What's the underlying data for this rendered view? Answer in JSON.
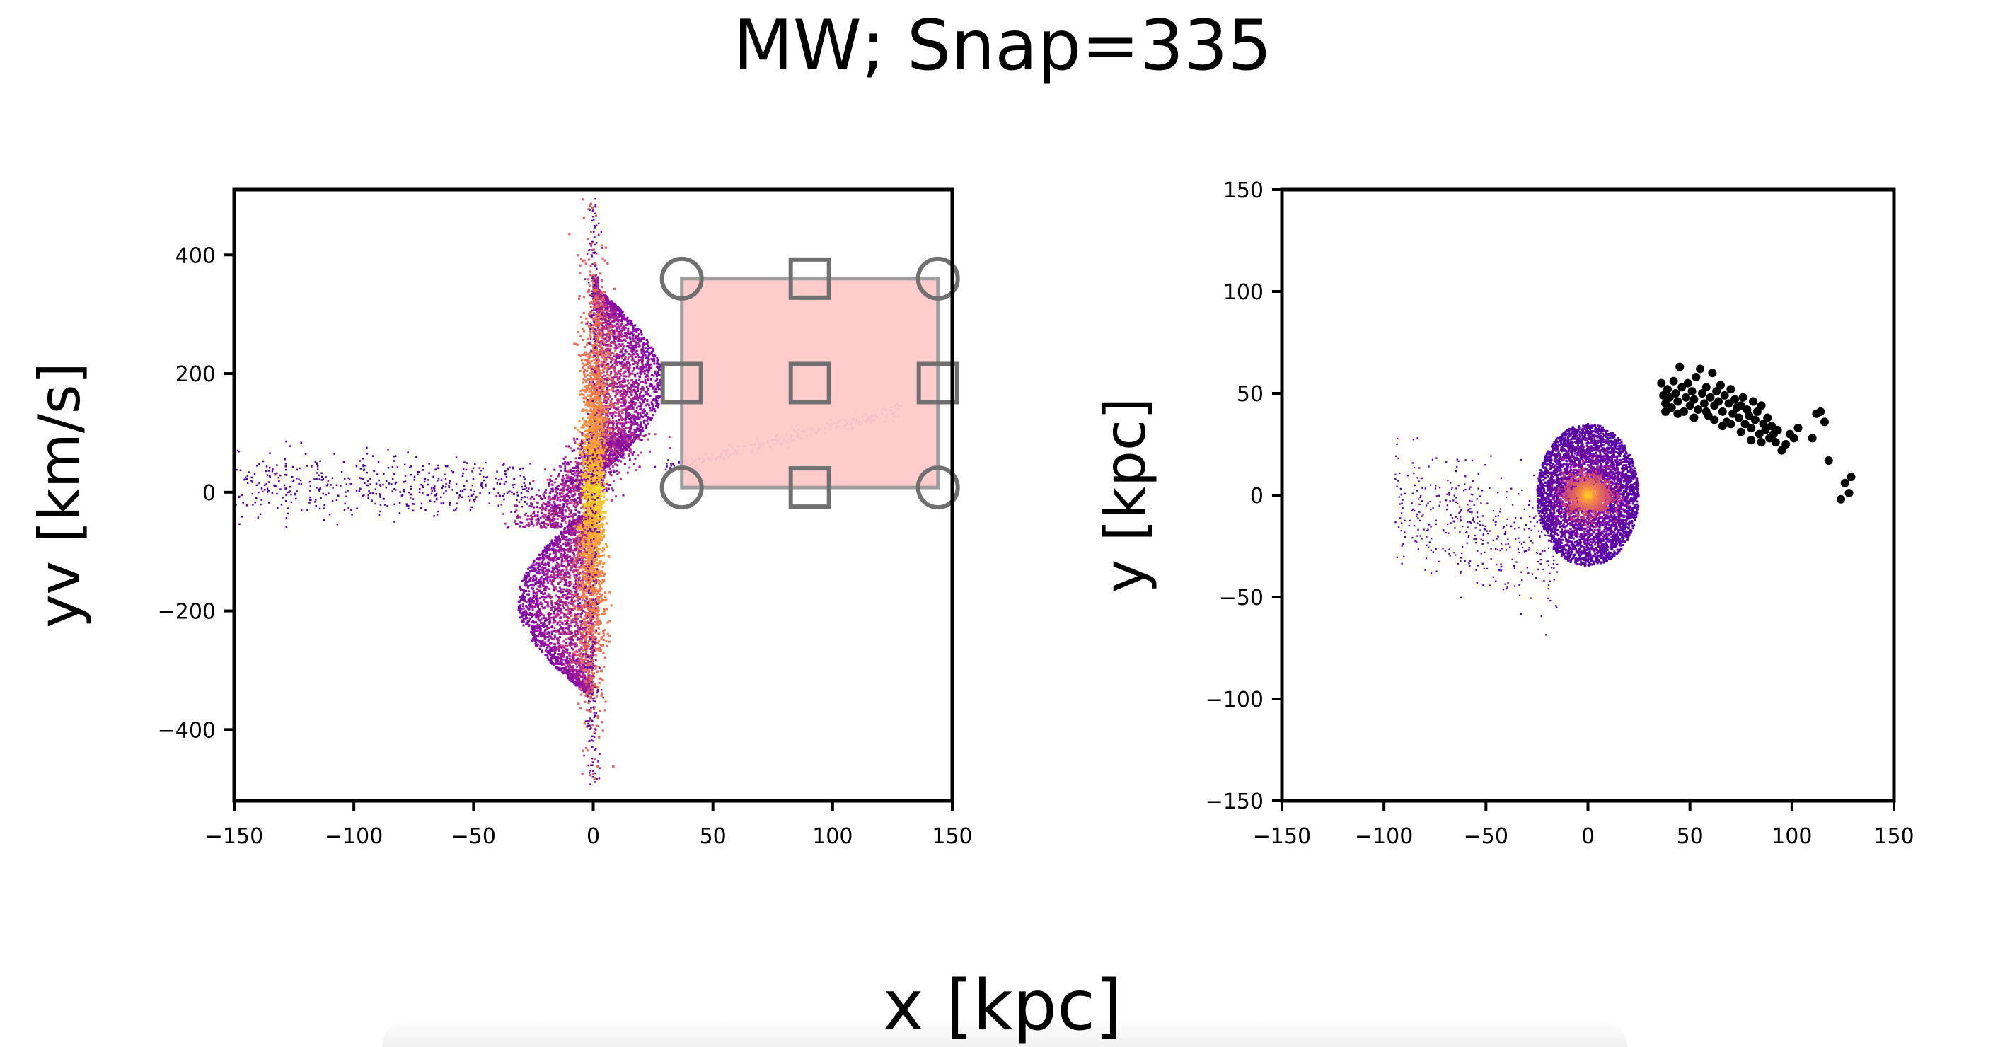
{
  "figure": {
    "title": "MW; Snap=335",
    "shared_xlabel": "x [kpc]"
  },
  "chart_data": [
    {
      "type": "heatmap",
      "panel": "left",
      "xlabel": "",
      "ylabel": "yv [km/s]",
      "xlim": [
        -150,
        150
      ],
      "ylim": [
        -520,
        510
      ],
      "xticks": [
        -150,
        -100,
        -50,
        0,
        50,
        100,
        150
      ],
      "yticks": [
        -400,
        -200,
        0,
        200,
        400
      ],
      "colormap": "plasma",
      "density_features": [
        {
          "feature": "central spine",
          "x_center": 0,
          "y_range": [
            -490,
            495
          ]
        },
        {
          "feature": "upper lobe",
          "x_range": [
            0,
            28
          ],
          "y_range": [
            60,
            360
          ]
        },
        {
          "feature": "lower lobe",
          "x_range": [
            -32,
            0
          ],
          "y_range": [
            -340,
            -40
          ]
        },
        {
          "feature": "left tail",
          "x_range": [
            -150,
            -25
          ],
          "y_approx": 10
        },
        {
          "feature": "right stream",
          "x_range": [
            35,
            130
          ],
          "y_range": [
            40,
            140
          ]
        }
      ],
      "selection_box": {
        "x_range": [
          37,
          144
        ],
        "y_range": [
          8,
          360
        ],
        "fill_color": "#ffc9c9",
        "edge_color": "#9e9e9e",
        "corner_handles": "circle",
        "edge_handles": "square"
      },
      "grid": false
    },
    {
      "type": "scatter",
      "panel": "right",
      "xlabel": "",
      "ylabel": "y [kpc]",
      "xlim": [
        -150,
        150
      ],
      "ylim": [
        -150,
        150
      ],
      "xticks": [
        -150,
        -100,
        -50,
        0,
        50,
        100,
        150
      ],
      "yticks": [
        -150,
        -100,
        -50,
        0,
        50,
        100,
        150
      ],
      "colormap": "plasma",
      "density_blob": {
        "x_center": 0,
        "y_center": 0,
        "x_radius": 25,
        "y_radius": 35
      },
      "selected_points_color": "#000000",
      "selected_points": [
        [
          36,
          55
        ],
        [
          37,
          49
        ],
        [
          38,
          45
        ],
        [
          39,
          52
        ],
        [
          40,
          48
        ],
        [
          41,
          43
        ],
        [
          42,
          56
        ],
        [
          43,
          50
        ],
        [
          44,
          46
        ],
        [
          45,
          63
        ],
        [
          46,
          53
        ],
        [
          47,
          41
        ],
        [
          48,
          48
        ],
        [
          49,
          55
        ],
        [
          50,
          44
        ],
        [
          51,
          51
        ],
        [
          52,
          47
        ],
        [
          53,
          58
        ],
        [
          54,
          42
        ],
        [
          55,
          62
        ],
        [
          56,
          50
        ],
        [
          57,
          45
        ],
        [
          58,
          53
        ],
        [
          59,
          39
        ],
        [
          60,
          48
        ],
        [
          61,
          60
        ],
        [
          62,
          44
        ],
        [
          63,
          51
        ],
        [
          64,
          46
        ],
        [
          65,
          54
        ],
        [
          66,
          41
        ],
        [
          67,
          49
        ],
        [
          68,
          36
        ],
        [
          69,
          45
        ],
        [
          70,
          52
        ],
        [
          71,
          40
        ],
        [
          72,
          47
        ],
        [
          73,
          43
        ],
        [
          74,
          38
        ],
        [
          75,
          44
        ],
        [
          76,
          48
        ],
        [
          77,
          35
        ],
        [
          78,
          42
        ],
        [
          79,
          39
        ],
        [
          80,
          33
        ],
        [
          81,
          46
        ],
        [
          82,
          37
        ],
        [
          83,
          41
        ],
        [
          84,
          30
        ],
        [
          85,
          44
        ],
        [
          86,
          35
        ],
        [
          87,
          32
        ],
        [
          88,
          38
        ],
        [
          89,
          28
        ],
        [
          90,
          34
        ],
        [
          91,
          30
        ],
        [
          92,
          26
        ],
        [
          93,
          32
        ],
        [
          95,
          22
        ],
        [
          97,
          25
        ],
        [
          99,
          30
        ],
        [
          101,
          28
        ],
        [
          103,
          33
        ],
        [
          110,
          28
        ],
        [
          112,
          40
        ],
        [
          114,
          41
        ],
        [
          116,
          36
        ],
        [
          118,
          17
        ],
        [
          124,
          -2
        ],
        [
          126,
          6
        ],
        [
          128,
          1
        ],
        [
          129,
          9
        ],
        [
          38,
          41
        ],
        [
          44,
          40
        ],
        [
          52,
          38
        ],
        [
          58,
          41
        ],
        [
          62,
          37
        ],
        [
          66,
          34
        ],
        [
          70,
          35
        ],
        [
          75,
          31
        ],
        [
          80,
          27
        ],
        [
          85,
          26
        ]
      ],
      "grid": false
    }
  ]
}
